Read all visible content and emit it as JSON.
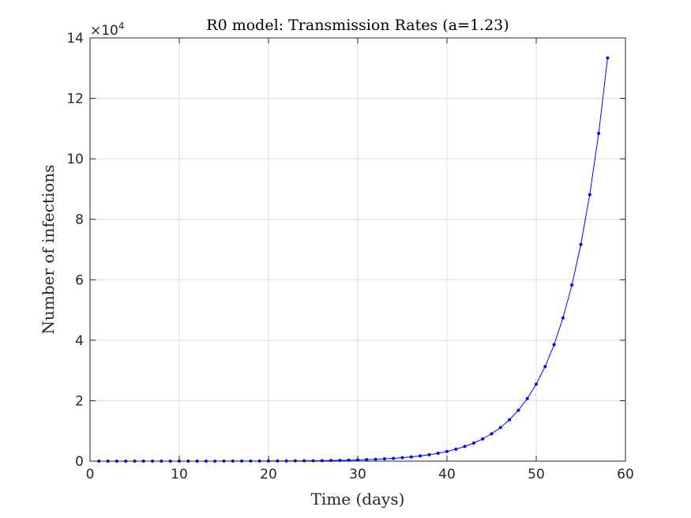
{
  "chart_data": {
    "type": "line",
    "title": "R0 model: Transmission Rates (a=1.23)",
    "xlabel": "Time (days)",
    "ylabel": "Number of infections",
    "y_exponent_label": "×10",
    "y_exponent_power": "4",
    "xlim": [
      0,
      60
    ],
    "ylim": [
      0,
      140000
    ],
    "xticks": [
      0,
      10,
      20,
      30,
      40,
      50,
      60
    ],
    "yticks": [
      0,
      20000,
      40000,
      60000,
      80000,
      100000,
      120000,
      140000
    ],
    "xtick_labels": [
      "0",
      "10",
      "20",
      "30",
      "40",
      "50",
      "60"
    ],
    "ytick_labels": [
      "0",
      "2",
      "4",
      "6",
      "8",
      "10",
      "12",
      "14"
    ],
    "grid": true,
    "series": [
      {
        "color": "#0000ff",
        "marker": "dot",
        "x": [
          1,
          2,
          3,
          4,
          5,
          6,
          7,
          8,
          9,
          10,
          11,
          12,
          13,
          14,
          15,
          16,
          17,
          18,
          19,
          20,
          21,
          22,
          23,
          24,
          25,
          26,
          27,
          28,
          29,
          30,
          31,
          32,
          33,
          34,
          35,
          36,
          37,
          38,
          39,
          40,
          41,
          42,
          43,
          44,
          45,
          46,
          47,
          48,
          49,
          50,
          51,
          52,
          53,
          54,
          55,
          56,
          57,
          58
        ],
        "y": [
          1,
          1.23,
          1.51,
          1.86,
          2.29,
          2.82,
          3.46,
          4.26,
          5.24,
          6.44,
          7.93,
          9.75,
          12,
          14.8,
          18.2,
          22.3,
          27.5,
          33.8,
          41.5,
          51.1,
          62.8,
          77.3,
          95,
          117,
          144,
          177,
          218,
          268,
          329,
          405,
          498,
          613,
          754,
          927,
          1141,
          1403,
          1726,
          2123,
          2611,
          3212,
          3950,
          4859,
          5976,
          7351,
          9041,
          11121,
          13679,
          16825,
          20695,
          25455,
          31310,
          38511,
          47368,
          58263,
          71664,
          88147,
          108420,
          133360
        ]
      }
    ]
  }
}
